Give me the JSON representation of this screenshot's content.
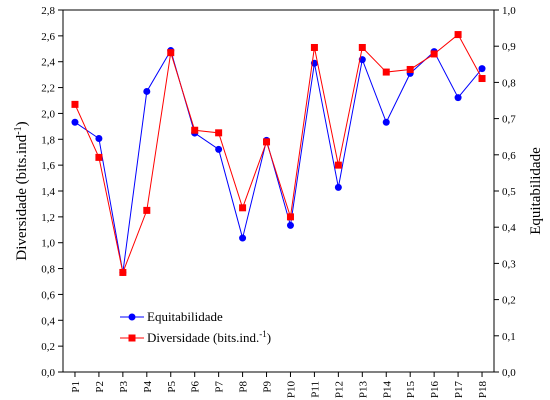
{
  "chart_data": {
    "type": "line",
    "categories": [
      "P1",
      "P2",
      "P3",
      "P4",
      "P5",
      "P6",
      "P7",
      "P8",
      "P9",
      "P10",
      "P11",
      "P12",
      "P13",
      "P14",
      "P15",
      "P16",
      "P17",
      "P18"
    ],
    "series": [
      {
        "name": "Equitabilidade",
        "axis": "right",
        "color": "#0000ff",
        "marker": "circle",
        "values": [
          0.69,
          0.645,
          0.275,
          0.775,
          0.888,
          0.66,
          0.615,
          0.37,
          0.64,
          0.405,
          0.853,
          0.51,
          0.863,
          0.69,
          0.825,
          0.885,
          0.758,
          0.838
        ]
      },
      {
        "name": "Diversidade (bits.ind.-1)",
        "axis": "left",
        "color": "#ff0000",
        "marker": "square",
        "values": [
          2.07,
          1.66,
          0.77,
          1.25,
          2.47,
          1.87,
          1.85,
          1.27,
          1.78,
          1.2,
          2.51,
          1.6,
          2.51,
          2.32,
          2.34,
          2.46,
          2.61,
          2.27
        ]
      }
    ],
    "ylabel_left_main": "Diversidade (bits.ind",
    "ylabel_left_sup": "-1",
    "ylabel_left_end": ")",
    "ylabel_right": "Equitabilidade",
    "ylim_left": [
      0,
      2.8
    ],
    "ylim_right": [
      0,
      1.0
    ],
    "yticks_left": [
      "0,0",
      "0,2",
      "0,4",
      "0,6",
      "0,8",
      "1,0",
      "1,2",
      "1,4",
      "1,6",
      "1,8",
      "2,0",
      "2,2",
      "2,4",
      "2,6",
      "2,8"
    ],
    "yticks_right": [
      "0,0",
      "0,1",
      "0,2",
      "0,3",
      "0,4",
      "0,5",
      "0,6",
      "0,7",
      "0,8",
      "0,9",
      "1,0"
    ],
    "grid": false,
    "legend_position": "bottom-left",
    "legend": {
      "item1": "Equitabilidade",
      "item2_main": "Diversidade (bits.ind.",
      "item2_sup": "-1",
      "item2_end": ")"
    }
  }
}
